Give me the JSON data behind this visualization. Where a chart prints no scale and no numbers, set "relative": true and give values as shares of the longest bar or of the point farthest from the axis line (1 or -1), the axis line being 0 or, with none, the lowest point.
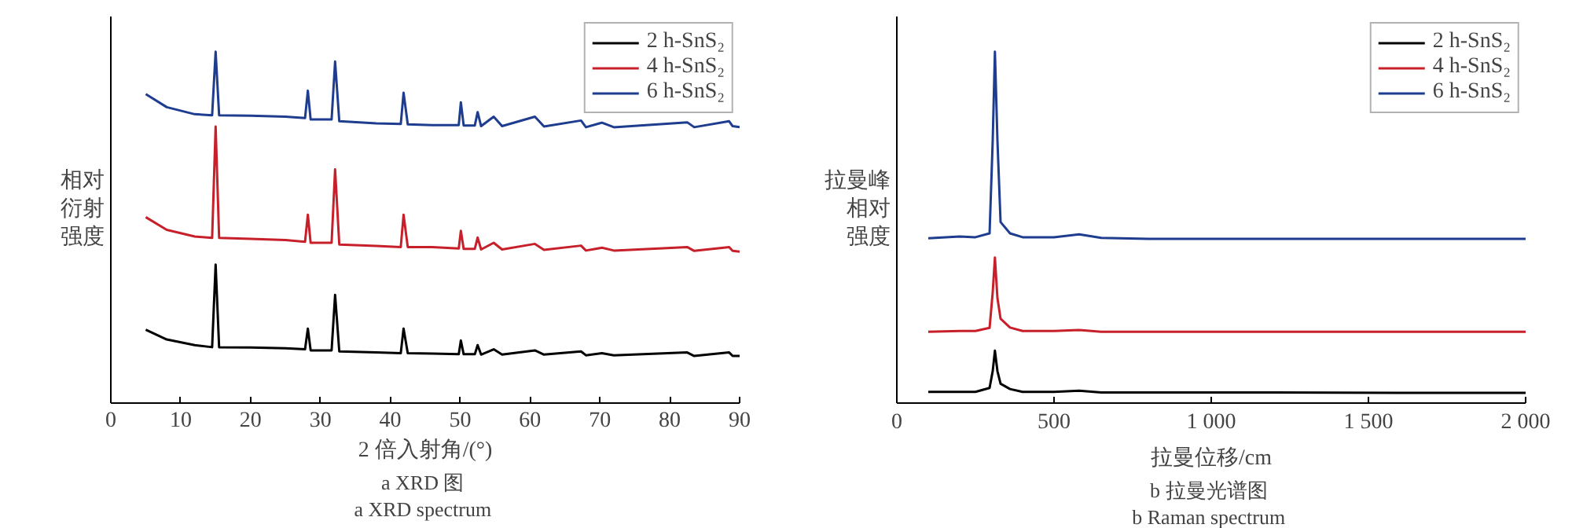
{
  "chart_data": [
    {
      "type": "line",
      "relative": true,
      "ylabel": "相对衍射强度",
      "xlabel": "2 倍入射角/(°)",
      "annotations": [
        "a  XRD 图",
        "a  XRD spectrum"
      ],
      "xlim": [
        0,
        90
      ],
      "xticks": [
        0,
        10,
        20,
        30,
        40,
        50,
        60,
        70,
        80,
        90
      ],
      "legend": "top right",
      "grid": false,
      "marker": "none",
      "line_style": "solid",
      "x": [
        5,
        8,
        12,
        14.5,
        15,
        15.5,
        20,
        25,
        27.8,
        28.2,
        28.6,
        31.6,
        32.1,
        32.7,
        38,
        41.5,
        41.9,
        42.5,
        46,
        49.8,
        50.1,
        50.5,
        52.1,
        52.5,
        53,
        54.8,
        56,
        60.7,
        62,
        67.3,
        68,
        70.3,
        72,
        82.5,
        83.5,
        88.5,
        89,
        90
      ],
      "series": [
        {
          "name": "2 h-SnS₂",
          "color": "#000000",
          "values": [
            0.209,
            0.181,
            0.165,
            0.159,
            0.394,
            0.159,
            0.158,
            0.156,
            0.153,
            0.212,
            0.15,
            0.15,
            0.308,
            0.147,
            0.144,
            0.142,
            0.212,
            0.142,
            0.141,
            0.139,
            0.178,
            0.139,
            0.139,
            0.165,
            0.138,
            0.153,
            0.138,
            0.15,
            0.138,
            0.147,
            0.136,
            0.142,
            0.136,
            0.144,
            0.134,
            0.144,
            0.134,
            0.134
          ]
        },
        {
          "name": "4 h-SnS₂",
          "color": "#c8202a",
          "values": [
            0.529,
            0.493,
            0.474,
            0.47,
            0.787,
            0.47,
            0.467,
            0.464,
            0.459,
            0.536,
            0.456,
            0.456,
            0.665,
            0.451,
            0.447,
            0.444,
            0.536,
            0.444,
            0.444,
            0.44,
            0.49,
            0.439,
            0.439,
            0.471,
            0.437,
            0.456,
            0.437,
            0.453,
            0.436,
            0.448,
            0.434,
            0.442,
            0.434,
            0.444,
            0.433,
            0.444,
            0.433,
            0.431
          ]
        },
        {
          "name": "6 h-SnS₂",
          "color": "#1f3d8f",
          "values": [
            0.879,
            0.842,
            0.822,
            0.819,
            1.0,
            0.819,
            0.818,
            0.815,
            0.811,
            0.889,
            0.807,
            0.807,
            0.972,
            0.802,
            0.796,
            0.794,
            0.883,
            0.793,
            0.791,
            0.791,
            0.856,
            0.79,
            0.79,
            0.828,
            0.788,
            0.815,
            0.788,
            0.815,
            0.787,
            0.804,
            0.785,
            0.798,
            0.785,
            0.799,
            0.785,
            0.802,
            0.788,
            0.785
          ]
        }
      ]
    },
    {
      "type": "line",
      "relative": true,
      "ylabel": "拉曼峰相对强度",
      "xlabel": "拉曼位移/cm",
      "annotations": [
        "b  拉曼光谱图",
        "b  Raman spectrum"
      ],
      "xlim": [
        0,
        2000
      ],
      "xticks": [
        0,
        500,
        {
          "value": 1000,
          "label": "1 000"
        },
        {
          "value": 1500,
          "label": "1 500"
        },
        {
          "value": 2000,
          "label": "2 000"
        }
      ],
      "legend": "top right",
      "grid": false,
      "marker": "none",
      "line_style": "solid",
      "x": [
        100,
        200,
        250,
        295,
        305,
        312,
        320,
        330,
        360,
        400,
        500,
        580,
        650,
        800,
        1200,
        1600,
        2000
      ],
      "series": [
        {
          "name": "2 h-SnS₂",
          "color": "#000000",
          "values": [
            0.032,
            0.032,
            0.032,
            0.043,
            0.091,
            0.149,
            0.091,
            0.055,
            0.04,
            0.032,
            0.032,
            0.035,
            0.03,
            0.03,
            0.03,
            0.029,
            0.029
          ]
        },
        {
          "name": "4 h-SnS₂",
          "color": "#c8202a",
          "values": [
            0.203,
            0.205,
            0.205,
            0.214,
            0.315,
            0.414,
            0.299,
            0.24,
            0.215,
            0.205,
            0.205,
            0.208,
            0.203,
            0.203,
            0.203,
            0.203,
            0.203
          ]
        },
        {
          "name": "6 h-SnS₂",
          "color": "#1f3d8f",
          "values": [
            0.469,
            0.474,
            0.472,
            0.483,
            0.747,
            1.0,
            0.747,
            0.515,
            0.483,
            0.472,
            0.472,
            0.48,
            0.47,
            0.467,
            0.467,
            0.467,
            0.467
          ]
        }
      ]
    }
  ]
}
